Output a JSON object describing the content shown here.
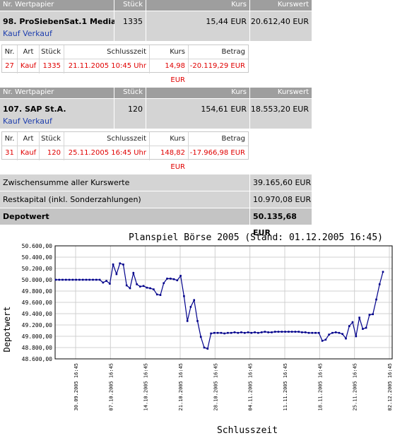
{
  "header": {
    "nr_wertpapier": "Nr. Wertpapier",
    "stueck": "Stück",
    "kurs": "Kurs",
    "kurswert": "Kurswert"
  },
  "positions": [
    {
      "name": "98. ProSiebenSat.1 Media",
      "stueck": "1335",
      "kurs": "15,44 EUR",
      "kurswert": "20.612,40 EUR",
      "kauf": "Kauf",
      "verkauf": "Verkauf",
      "orders_header": {
        "nr": "Nr.",
        "art": "Art",
        "stueck": "Stück",
        "schlusszeit": "Schlusszeit",
        "kurs": "Kurs",
        "betrag": "Betrag"
      },
      "order": {
        "nr": "27",
        "art": "Kauf",
        "stueck": "1335",
        "schlusszeit": "21.11.2005 10:45 Uhr",
        "kurs": "14,98 EUR",
        "betrag": "-20.119,29 EUR"
      }
    },
    {
      "name": "107. SAP St.A.",
      "stueck": "120",
      "kurs": "154,61 EUR",
      "kurswert": "18.553,20 EUR",
      "kauf": "Kauf",
      "verkauf": "Verkauf",
      "orders_header": {
        "nr": "Nr.",
        "art": "Art",
        "stueck": "Stück",
        "schlusszeit": "Schlusszeit",
        "kurs": "Kurs",
        "betrag": "Betrag"
      },
      "order": {
        "nr": "31",
        "art": "Kauf",
        "stueck": "120",
        "schlusszeit": "25.11.2005 16:45 Uhr",
        "kurs": "148,82 EUR",
        "betrag": "-17.966,98 EUR"
      }
    }
  ],
  "summary": {
    "zwischensumme_label": "Zwischensumme aller Kurswerte",
    "zwischensumme_value": "39.165,60 EUR",
    "restkapital_label": "Restkapital (inkl. Sonderzahlungen)",
    "restkapital_value": "10.970,08 EUR",
    "depotwert_label": "Depotwert",
    "depotwert_value": "50.135,68 EUR"
  },
  "colors": {
    "header_bg": "#9e9e9e",
    "row_bg": "#d4d4d4",
    "link": "#1f3fae",
    "order_text": "#e00000",
    "line": "#00008b"
  },
  "chart_data": {
    "type": "line",
    "title": "Planspiel Börse 2005 (Stand: 01.12.2005 16:45)",
    "xlabel": "Schlusszeit",
    "ylabel": "Depotwert",
    "ylim": [
      48600,
      50600
    ],
    "y_ticks": [
      "48.600,00",
      "48.800,00",
      "49.000,00",
      "49.200,00",
      "49.400,00",
      "49.600,00",
      "49.800,00",
      "50.000,00",
      "50.200,00",
      "50.400,00",
      "50.600,00"
    ],
    "x_ticks": [
      "30.09.2005 16:45",
      "07.10.2005 16:45",
      "14.10.2005 16:45",
      "21.10.2005 16:45",
      "28.10.2005 16:45",
      "04.11.2005 16:45",
      "11.11.2005 16:45",
      "18.11.2005 16:45",
      "25.11.2005 16:45",
      "02.12.2005 16:45"
    ],
    "grid": true,
    "series": [
      {
        "values": [
          50000,
          50000,
          50000,
          50000,
          50000,
          50000,
          50000,
          50000,
          50000,
          50000,
          50000,
          50000,
          50000,
          50000,
          49950,
          49980,
          49930,
          50270,
          50100,
          50290,
          50270,
          49900,
          49850,
          50120,
          49920,
          49880,
          49890,
          49860,
          49850,
          49830,
          49740,
          49730,
          49940,
          50020,
          50020,
          50010,
          49990,
          50070,
          49710,
          49270,
          49520,
          49640,
          49270,
          48990,
          48800,
          48780,
          49050,
          49060,
          49060,
          49060,
          49050,
          49060,
          49060,
          49070,
          49060,
          49070,
          49060,
          49070,
          49060,
          49070,
          49060,
          49070,
          49080,
          49070,
          49070,
          49080,
          49080,
          49080,
          49080,
          49080,
          49080,
          49080,
          49080,
          49070,
          49070,
          49060,
          49060,
          49060,
          49060,
          48920,
          48940,
          49030,
          49060,
          49070,
          49060,
          49040,
          48960,
          49180,
          49250,
          49000,
          49330,
          49130,
          49150,
          49380,
          49390,
          49650,
          49920,
          50140
        ]
      }
    ]
  }
}
